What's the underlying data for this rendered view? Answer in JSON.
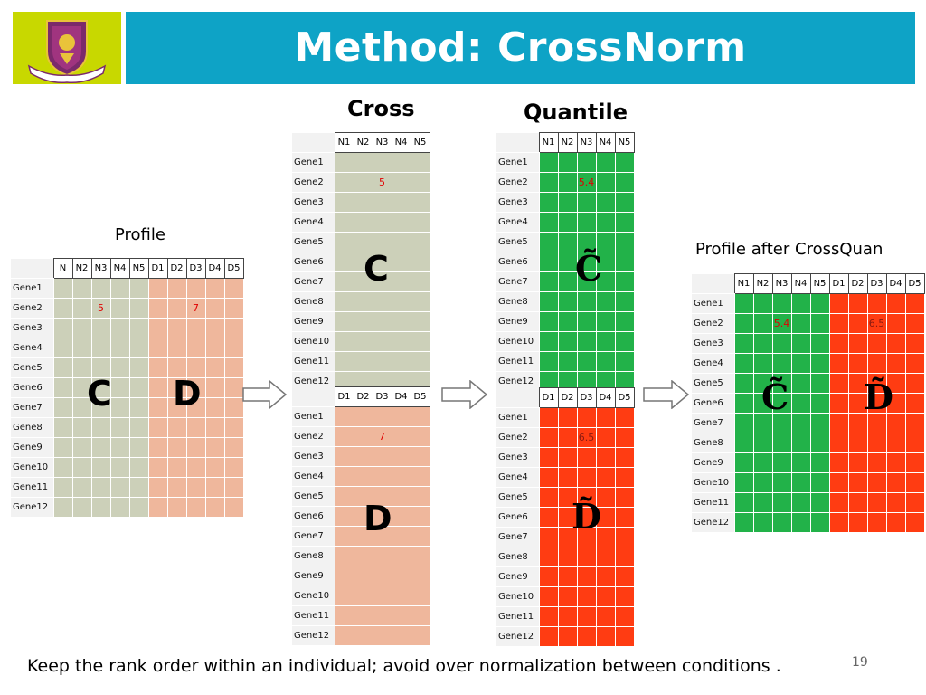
{
  "slide": {
    "title": "Method: CrossNorm",
    "page_number": "19",
    "footer": "Keep the rank order within an individual; avoid over normalization between conditions .",
    "logo": "university-crest-logo"
  },
  "colors": {
    "title_bar": "#0ea3c6",
    "logo_bg": "#c8d800",
    "profile_c": "#ccd0b9",
    "profile_d": "#efb79c",
    "quantile_c": "#22b249",
    "quantile_d": "#ff3c12",
    "value_highlight": "#e00000"
  },
  "labels": {
    "profile": "Profile",
    "cross": "Cross",
    "quantile": "Quantile",
    "profile_after": "Profile after CrossQuan"
  },
  "genes": [
    "Gene1",
    "Gene2",
    "Gene3",
    "Gene4",
    "Gene5",
    "Gene6",
    "Gene7",
    "Gene8",
    "Gene9",
    "Gene10",
    "Gene11",
    "Gene12"
  ],
  "profile_table": {
    "n_headers": [
      "N",
      "N2",
      "N3",
      "N4",
      "N5"
    ],
    "d_headers": [
      "D1",
      "D2",
      "D3",
      "D4",
      "D5"
    ],
    "c_label": "C",
    "d_label": "D",
    "c_value": "5",
    "d_value": "7"
  },
  "cross_c_table": {
    "headers": [
      "N1",
      "N2",
      "N3",
      "N4",
      "N5"
    ],
    "label": "C",
    "value": "5"
  },
  "cross_d_table": {
    "headers": [
      "D1",
      "D2",
      "D3",
      "D4",
      "D5"
    ],
    "label": "D",
    "value": "7"
  },
  "quant_c_table": {
    "headers": [
      "N1",
      "N2",
      "N3",
      "N4",
      "N5"
    ],
    "label": "C̃",
    "value": "5.4"
  },
  "quant_d_table": {
    "headers": [
      "D1",
      "D2",
      "D3",
      "D4",
      "D5"
    ],
    "label": "D̃",
    "value": "6.5"
  },
  "after_table": {
    "n_headers": [
      "N1",
      "N2",
      "N3",
      "N4",
      "N5"
    ],
    "d_headers": [
      "D1",
      "D2",
      "D3",
      "D4",
      "D5"
    ],
    "c_label": "C̃",
    "d_label": "D̃",
    "c_value": "5.4",
    "d_value": "6.5"
  },
  "arrows": [
    "right-arrow-icon",
    "right-arrow-icon",
    "right-arrow-icon"
  ]
}
